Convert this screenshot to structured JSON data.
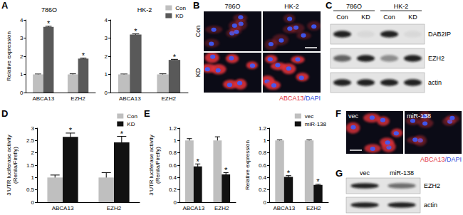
{
  "chart_data": [
    {
      "panel": "A",
      "type": "bar",
      "title": "786O",
      "y_label": "Relative expression",
      "categories": [
        "ABCA13",
        "EZH2"
      ],
      "series": [
        {
          "name": "Con",
          "color": "#bfbfbf",
          "values": [
            1,
            1
          ],
          "errors": [
            0.02,
            0.03
          ]
        },
        {
          "name": "KD",
          "color": "#595959",
          "values": [
            3.62,
            1.87
          ],
          "errors": [
            0.03,
            0.03
          ]
        }
      ],
      "annotations": [
        {
          "series": "KD",
          "category": "ABCA13",
          "text": "*"
        },
        {
          "series": "KD",
          "category": "EZH2",
          "text": "*"
        }
      ],
      "ylim": [
        0,
        4
      ],
      "yticks": [
        0,
        1,
        2,
        3,
        4
      ]
    },
    {
      "panel": "A",
      "type": "bar",
      "title": "HK-2",
      "categories": [
        "ABCA13",
        "EZH2"
      ],
      "series": [
        {
          "name": "Con",
          "color": "#bfbfbf",
          "values": [
            1,
            1
          ],
          "errors": [
            0.02,
            0.03
          ]
        },
        {
          "name": "KD",
          "color": "#595959",
          "values": [
            3.2,
            1.8
          ],
          "errors": [
            0.03,
            0.03
          ]
        }
      ],
      "annotations": [
        {
          "series": "KD",
          "category": "ABCA13",
          "text": "*"
        },
        {
          "series": "KD",
          "category": "EZH2",
          "text": "*"
        }
      ],
      "ylim": [
        0,
        4
      ],
      "yticks": [
        0,
        1,
        2,
        3,
        4
      ],
      "legend": "top-right"
    },
    {
      "panel": "D",
      "type": "bar",
      "y_label": "3'UTR luciferase activity\n(Renila/Firefly)",
      "categories": [
        "ABCA13",
        "EZH2"
      ],
      "series": [
        {
          "name": "Con",
          "color": "#bfbfbf",
          "values": [
            1,
            1
          ],
          "errors": [
            0.1,
            0.2
          ]
        },
        {
          "name": "KD",
          "color": "#111111",
          "values": [
            2.65,
            2.42
          ],
          "errors": [
            0.15,
            0.25
          ]
        }
      ],
      "annotations": [
        {
          "series": "KD",
          "category": "ABCA13",
          "text": "*"
        },
        {
          "series": "KD",
          "category": "EZH2",
          "text": "*"
        }
      ],
      "ylim": [
        0,
        3
      ],
      "yticks": [
        0,
        0.5,
        1,
        1.5,
        2,
        2.5,
        3
      ],
      "legend": "top-right"
    },
    {
      "panel": "E",
      "type": "bar",
      "y_label": "3'UTR luciferase activity\n(Renila/Firefly)",
      "categories": [
        "ABCA13",
        "EZH2"
      ],
      "series": [
        {
          "name": "vec",
          "color": "#bfbfbf",
          "values": [
            1,
            1
          ],
          "errors": [
            0.03,
            0.06
          ]
        },
        {
          "name": "miR-138",
          "color": "#111111",
          "values": [
            0.58,
            0.45
          ],
          "errors": [
            0.04,
            0.03
          ]
        }
      ],
      "annotations": [
        {
          "series": "miR-138",
          "category": "ABCA13",
          "text": "*"
        },
        {
          "series": "miR-138",
          "category": "EZH2",
          "text": "*"
        }
      ],
      "ylim": [
        0,
        1.2
      ],
      "yticks": [
        0,
        0.2,
        0.4,
        0.6,
        0.8,
        1,
        1.2
      ]
    },
    {
      "panel": "E",
      "type": "bar",
      "y_label": "Relative expression",
      "categories": [
        "ABCA13",
        "EZH2"
      ],
      "series": [
        {
          "name": "vec",
          "color": "#bfbfbf",
          "values": [
            1,
            1
          ],
          "errors": [
            0.01,
            0.01
          ]
        },
        {
          "name": "miR-138",
          "color": "#111111",
          "values": [
            0.41,
            0.28
          ],
          "errors": [
            0.02,
            0.01
          ]
        }
      ],
      "annotations": [
        {
          "series": "miR-138",
          "category": "ABCA13",
          "text": "*"
        },
        {
          "series": "miR-138",
          "category": "EZH2",
          "text": "*"
        }
      ],
      "ylim": [
        0,
        1.2
      ],
      "yticks": [
        0,
        0.2,
        0.4,
        0.6,
        0.8,
        1,
        1.2
      ],
      "legend": "top-right"
    }
  ],
  "images": [
    {
      "panel": "B",
      "columns": [
        "786O",
        "HK-2"
      ],
      "rows": [
        "Con",
        "KD"
      ],
      "signal": [
        [
          0.2,
          0.2
        ],
        [
          0.9,
          0.9
        ]
      ],
      "caption": [
        {
          "text": "ABCA13",
          "color": "#e0303a"
        },
        {
          "text": "/DAPI",
          "color": "#2a48d8"
        }
      ]
    },
    {
      "panel": "F",
      "columns": [
        "vec",
        "miR-138"
      ],
      "rows": [],
      "signal": [
        [
          0.8,
          0.3
        ]
      ],
      "caption": [
        {
          "text": "ABCA13",
          "color": "#e0303a"
        },
        {
          "text": "/DAPI",
          "color": "#2a48d8"
        }
      ]
    }
  ],
  "blots": [
    {
      "panel": "C",
      "groups": [
        "786O",
        "HK-2"
      ],
      "lanes": [
        "Con",
        "KD",
        "Con",
        "KD"
      ],
      "rows": [
        {
          "label": "DAB2IP",
          "bands": [
            0.9,
            0.05,
            0.9,
            0.05
          ]
        },
        {
          "label": "EZH2",
          "bands": [
            0.6,
            0.9,
            0.4,
            0.9
          ]
        },
        {
          "label": "actin",
          "bands": [
            0.9,
            0.9,
            0.9,
            0.9
          ]
        }
      ]
    },
    {
      "panel": "G",
      "groups": [],
      "lanes": [
        "vec",
        "miR-138"
      ],
      "rows": [
        {
          "label": "EZH2",
          "bands": [
            0.9,
            0.55
          ]
        },
        {
          "label": "actin",
          "bands": [
            0.9,
            0.9
          ]
        }
      ]
    }
  ]
}
